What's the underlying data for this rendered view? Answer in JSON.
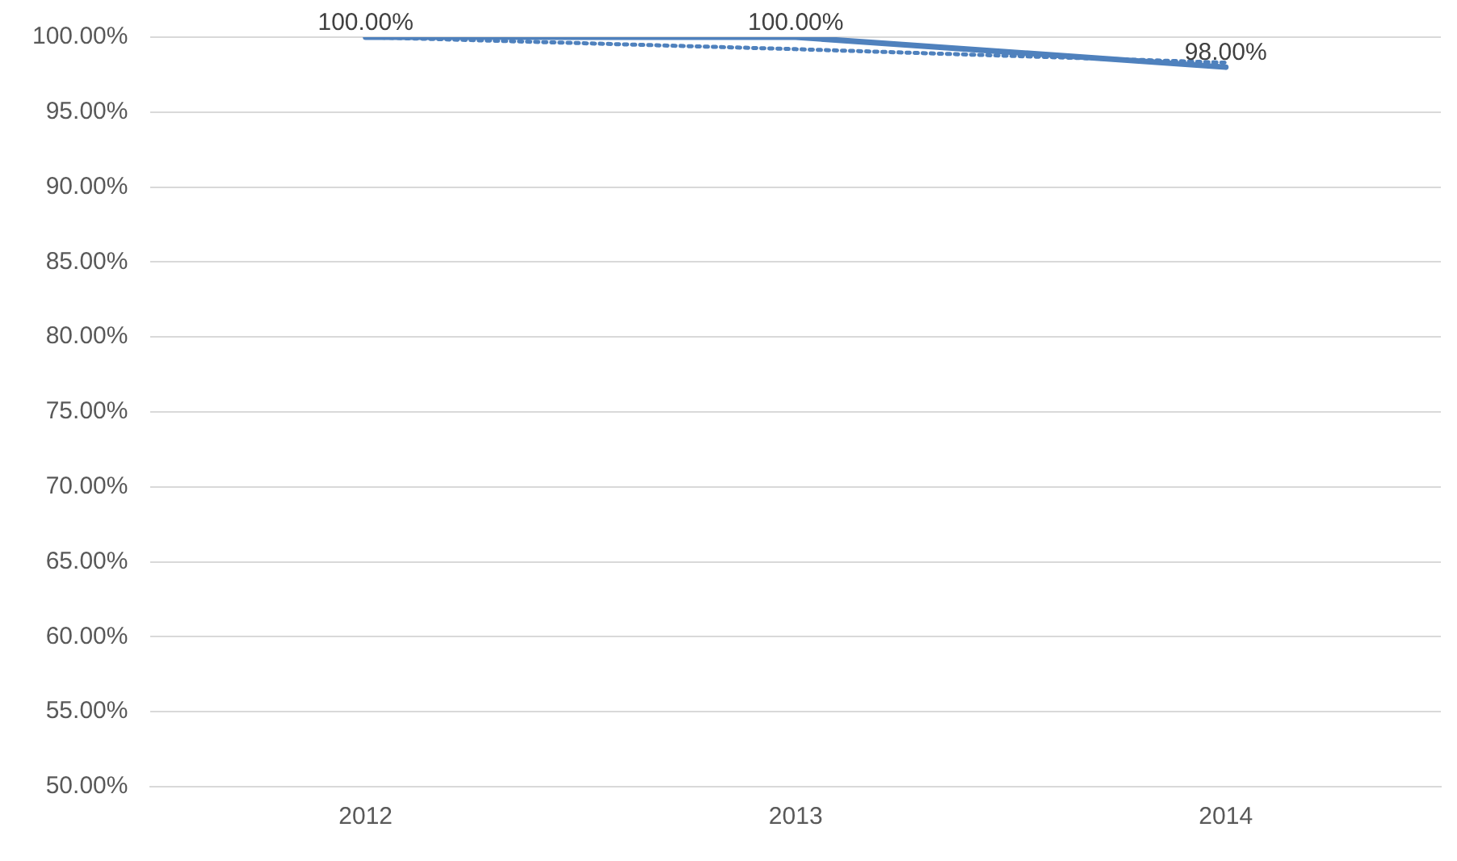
{
  "chart_data": {
    "type": "line",
    "categories": [
      "2012",
      "2013",
      "2014"
    ],
    "series": [
      {
        "color": "#4f81bd",
        "values": [
          100,
          100,
          98
        ],
        "value_labels": [
          "100.00%",
          "100.00%",
          "98.00%"
        ],
        "line_style": "solid"
      },
      {
        "color": "#4f81bd",
        "values": [
          100,
          99.2,
          98.3
        ],
        "line_style": "dotted"
      }
    ],
    "ylim": [
      50,
      100
    ],
    "yticks": [
      {
        "value": 50,
        "label": "50.00%"
      },
      {
        "value": 55,
        "label": "55.00%"
      },
      {
        "value": 60,
        "label": "60.00%"
      },
      {
        "value": 65,
        "label": "65.00%"
      },
      {
        "value": 70,
        "label": "70.00%"
      },
      {
        "value": 75,
        "label": "75.00%"
      },
      {
        "value": 80,
        "label": "80.00%"
      },
      {
        "value": 85,
        "label": "85.00%"
      },
      {
        "value": 90,
        "label": "90.00%"
      },
      {
        "value": 95,
        "label": "95.00%"
      },
      {
        "value": 100,
        "label": "100.00%"
      }
    ],
    "grid": "y",
    "legend": false,
    "marker": "none"
  }
}
